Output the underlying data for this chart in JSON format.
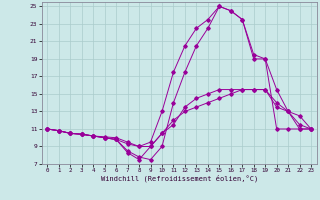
{
  "xlabel": "Windchill (Refroidissement éolien,°C)",
  "xlim": [
    -0.5,
    23.5
  ],
  "ylim": [
    7,
    25.5
  ],
  "yticks": [
    7,
    9,
    11,
    13,
    15,
    17,
    19,
    21,
    23,
    25
  ],
  "xticks": [
    0,
    1,
    2,
    3,
    4,
    5,
    6,
    7,
    8,
    9,
    10,
    11,
    12,
    13,
    14,
    15,
    16,
    17,
    18,
    19,
    20,
    21,
    22,
    23
  ],
  "bg_color": "#cce8e8",
  "grid_color": "#aacccc",
  "line_color": "#990099",
  "lines": [
    {
      "x": [
        0,
        1,
        2,
        3,
        4,
        5,
        6,
        7,
        8,
        9,
        10,
        11,
        12,
        13,
        14,
        15,
        16,
        17,
        18,
        19,
        20,
        21,
        22,
        23
      ],
      "y": [
        11,
        10.8,
        10.5,
        10.4,
        10.2,
        10.1,
        10.0,
        9.5,
        9.0,
        9.0,
        10.5,
        12.0,
        13.0,
        13.5,
        14.0,
        14.5,
        15.0,
        15.5,
        15.5,
        15.5,
        14.0,
        13.0,
        11.0,
        11.0
      ]
    },
    {
      "x": [
        0,
        1,
        2,
        3,
        4,
        5,
        6,
        7,
        8,
        9,
        10,
        11,
        12,
        13,
        14,
        15,
        16,
        17,
        18,
        19,
        20,
        21,
        22,
        23
      ],
      "y": [
        11,
        10.8,
        10.5,
        10.4,
        10.2,
        10.0,
        9.8,
        9.3,
        9.0,
        9.5,
        13.0,
        17.5,
        20.5,
        22.5,
        23.5,
        25.0,
        24.5,
        23.5,
        19.0,
        19.0,
        11.0,
        11.0,
        11.0,
        11.0
      ]
    },
    {
      "x": [
        0,
        1,
        2,
        3,
        4,
        5,
        6,
        7,
        8,
        9,
        10,
        11,
        12,
        13,
        14,
        15,
        16,
        17,
        18,
        19,
        20,
        21,
        22,
        23
      ],
      "y": [
        11,
        10.8,
        10.5,
        10.4,
        10.2,
        10.0,
        9.8,
        8.5,
        7.8,
        7.5,
        9.0,
        14.0,
        17.5,
        20.5,
        22.5,
        25.0,
        24.5,
        23.5,
        19.5,
        19.0,
        15.5,
        13.0,
        11.5,
        11.0
      ]
    },
    {
      "x": [
        0,
        1,
        2,
        3,
        4,
        5,
        6,
        7,
        8,
        9,
        10,
        11,
        12,
        13,
        14,
        15,
        16,
        17,
        18,
        19,
        20,
        21,
        22,
        23
      ],
      "y": [
        11,
        10.8,
        10.5,
        10.4,
        10.2,
        10.0,
        9.8,
        8.3,
        7.5,
        9.0,
        10.5,
        11.5,
        13.5,
        14.5,
        15.0,
        15.5,
        15.5,
        15.5,
        15.5,
        15.5,
        13.5,
        13.0,
        12.5,
        11.0
      ]
    }
  ]
}
